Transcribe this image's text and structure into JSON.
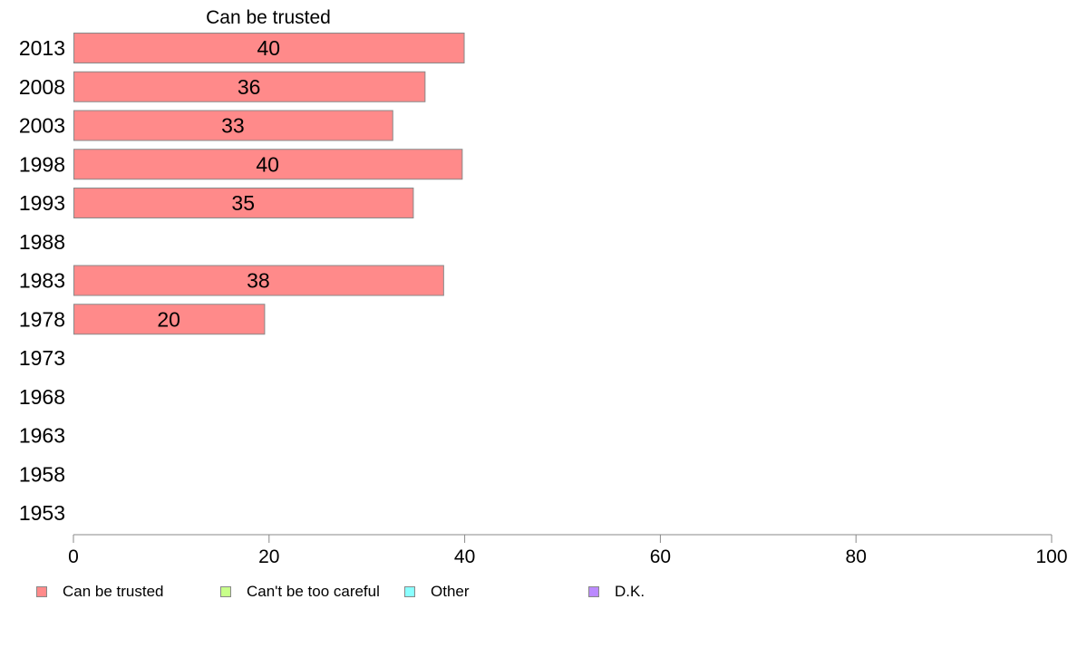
{
  "chart_data": {
    "type": "bar",
    "orientation": "horizontal",
    "title": "Can be trusted",
    "categories": [
      "2013",
      "2008",
      "2003",
      "1998",
      "1993",
      "1988",
      "1983",
      "1978",
      "1973",
      "1968",
      "1963",
      "1958",
      "1953"
    ],
    "series": [
      {
        "name": "Can be trusted",
        "color": "#ff8a8a",
        "values": [
          40,
          36,
          33,
          40,
          35,
          null,
          38,
          20,
          null,
          null,
          null,
          null,
          null
        ],
        "bar_lengths": [
          39.9,
          35.9,
          32.6,
          39.7,
          34.7,
          null,
          37.8,
          19.5,
          null,
          null,
          null,
          null,
          null
        ]
      }
    ],
    "xlim": [
      0,
      100
    ],
    "xticks": [
      0,
      20,
      40,
      60,
      80,
      100
    ],
    "grid": false,
    "legend": {
      "placement": "bottom",
      "items": [
        {
          "label": "Can be trusted",
          "color": "#ff8a8a"
        },
        {
          "label": "Can't be too careful",
          "color": "#c8ff8a"
        },
        {
          "label": "Other",
          "color": "#8affff"
        },
        {
          "label": "D.K.",
          "color": "#bb8aff"
        }
      ]
    }
  }
}
